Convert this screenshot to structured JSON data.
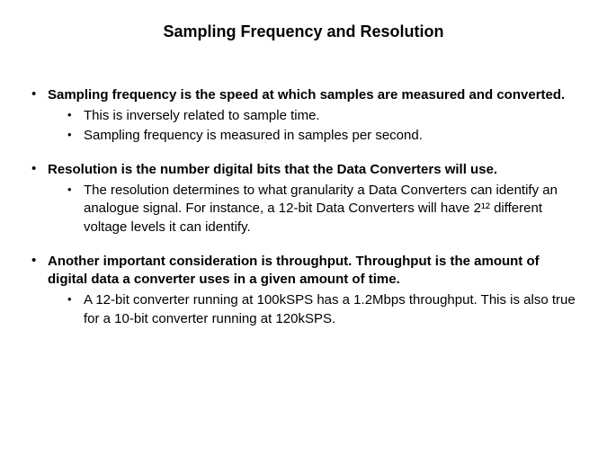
{
  "title": "Sampling Frequency and Resolution",
  "bullets": [
    {
      "main": "Sampling frequency is the speed at which samples are measured and converted.",
      "subs": [
        "This is inversely related to sample time.",
        "Sampling frequency is measured in samples per second."
      ]
    },
    {
      "main": "Resolution is the number digital bits that the Data Converters will use.",
      "subs": [
        "The resolution determines to what granularity a Data Converters can identify an analogue signal. For instance, a 12-bit Data Converters will have 2¹² different voltage levels it can identify."
      ]
    },
    {
      "main": "Another important consideration is throughput. Throughput is the amount of digital data a converter uses in a given amount of time.",
      "subs": [
        "A 12-bit converter running at 100kSPS has a 1.2Mbps throughput. This is also true for a 10-bit converter running at 120kSPS."
      ]
    }
  ]
}
